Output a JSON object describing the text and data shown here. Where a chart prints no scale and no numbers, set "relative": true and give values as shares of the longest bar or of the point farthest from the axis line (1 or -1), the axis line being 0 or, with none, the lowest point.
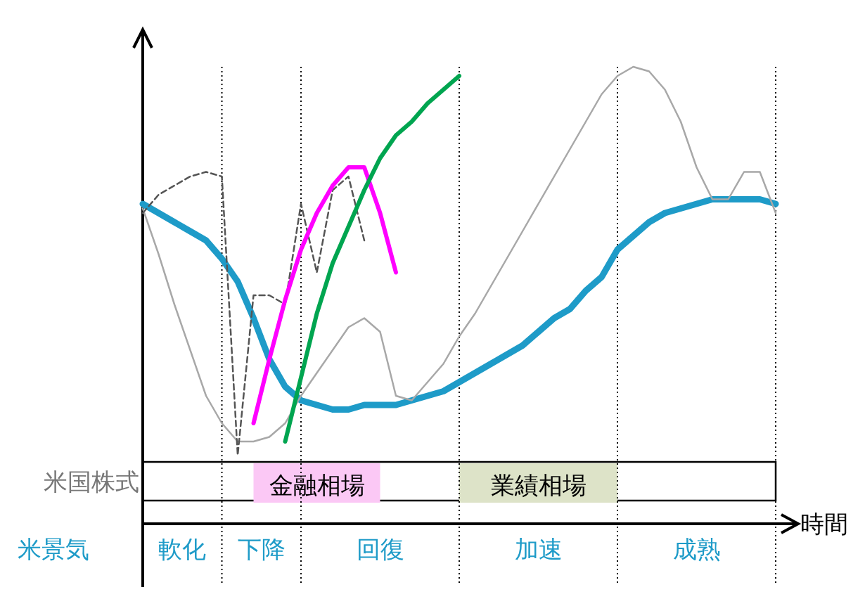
{
  "chart_data": {
    "type": "line",
    "relative": true,
    "xlabel": "時間",
    "categories": [
      null,
      null,
      null,
      null,
      null,
      null,
      null,
      null,
      null,
      null,
      null,
      null,
      null,
      null,
      null,
      null,
      null,
      null,
      null,
      null,
      null,
      null,
      null,
      null,
      null,
      null,
      null,
      null,
      null,
      null,
      null,
      null,
      null,
      null,
      null,
      null,
      null,
      null,
      null,
      null,
      null
    ],
    "series": [
      {
        "color": "#1e9bc8",
        "values": [
          0.7,
          0.68,
          0.66,
          0.64,
          0.62,
          0.58,
          0.53,
          0.45,
          0.36,
          0.3,
          0.27,
          0.26,
          0.25,
          0.25,
          0.26,
          0.26,
          0.26,
          0.27,
          0.28,
          0.29,
          0.31,
          0.33,
          0.35,
          0.37,
          0.39,
          0.42,
          0.45,
          0.47,
          0.51,
          0.54,
          0.6,
          0.63,
          0.66,
          0.68,
          0.69,
          0.7,
          0.71,
          0.71,
          0.71,
          0.71,
          0.7
        ]
      },
      {
        "color": "#a8a8a8",
        "values": [
          0.69,
          0.59,
          0.48,
          0.38,
          0.28,
          0.22,
          0.18,
          0.18,
          0.19,
          0.22,
          0.28,
          0.33,
          0.38,
          0.43,
          0.45,
          0.42,
          0.28,
          0.27,
          0.31,
          0.35,
          0.41,
          0.46,
          0.52,
          0.58,
          0.64,
          0.7,
          0.76,
          0.82,
          0.88,
          0.94,
          0.98,
          1.0,
          0.99,
          0.95,
          0.88,
          0.78,
          0.71,
          0.71,
          0.77,
          0.77,
          0.68
        ]
      },
      {
        "color": "#555555",
        "line_style": "dashed",
        "values": [
          0.68,
          0.72,
          0.74,
          0.76,
          0.77,
          0.76,
          0.15,
          0.5,
          0.5,
          0.48,
          0.7,
          0.55,
          0.73,
          0.76,
          0.62,
          null,
          null,
          null,
          null,
          null,
          null,
          null,
          null,
          null,
          null,
          null,
          null,
          null,
          null,
          null,
          null,
          null,
          null,
          null,
          null,
          null,
          null,
          null,
          null,
          null,
          null
        ]
      },
      {
        "color": "#ff00ff",
        "values": [
          null,
          null,
          null,
          null,
          null,
          null,
          null,
          0.22,
          0.36,
          0.49,
          0.6,
          0.68,
          0.74,
          0.78,
          0.78,
          0.68,
          0.55,
          null,
          null,
          null,
          null,
          null,
          null,
          null,
          null,
          null,
          null,
          null,
          null,
          null,
          null,
          null,
          null,
          null,
          null,
          null,
          null,
          null,
          null,
          null,
          null
        ]
      },
      {
        "color": "#00a550",
        "values": [
          null,
          null,
          null,
          null,
          null,
          null,
          null,
          null,
          null,
          0.18,
          0.32,
          0.46,
          0.57,
          0.65,
          0.73,
          0.8,
          0.85,
          0.88,
          0.92,
          0.95,
          0.98,
          null,
          null,
          null,
          null,
          null,
          null,
          null,
          null,
          null,
          null,
          null,
          null,
          null,
          null,
          null,
          null,
          null,
          null,
          null,
          null
        ]
      }
    ],
    "grid": "x",
    "annotations": [
      "米国株式",
      "米景気",
      "軟化",
      "下降",
      "回復",
      "加速",
      "成熟",
      "金融相場",
      "業績相場"
    ]
  }
}
